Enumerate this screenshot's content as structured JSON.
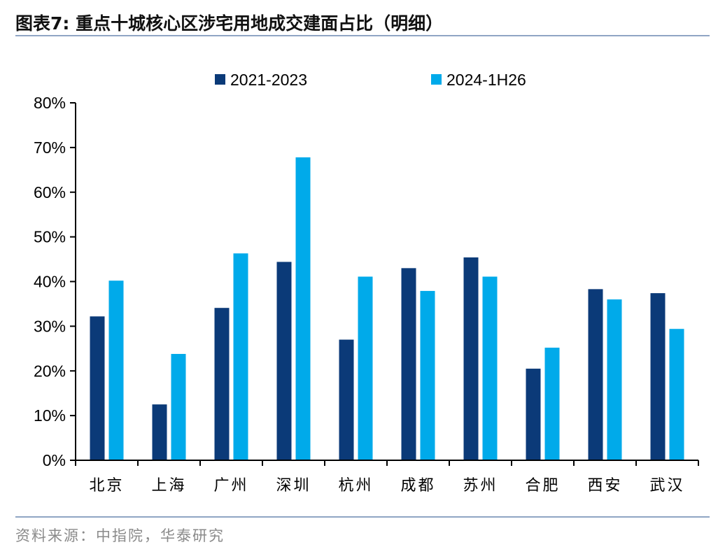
{
  "header": {
    "title": "图表7:   重点十城核心区涉宅用地成交建面占比（明细）"
  },
  "footer": {
    "source": "资料来源：中指院，华泰研究"
  },
  "colors": {
    "series1": "#0b3a78",
    "series2": "#00aaea",
    "axis": "#000000",
    "rule": "#8fa5c4"
  },
  "chart_data": {
    "type": "bar",
    "categories": [
      "北京",
      "上海",
      "广州",
      "深圳",
      "杭州",
      "成都",
      "苏州",
      "合肥",
      "西安",
      "武汉"
    ],
    "series": [
      {
        "name": "2021-2023",
        "values": [
          32.2,
          12.5,
          34.1,
          44.4,
          27.0,
          43.0,
          45.4,
          20.5,
          38.3,
          37.4
        ]
      },
      {
        "name": "2024-1H26",
        "values": [
          40.2,
          23.8,
          46.3,
          67.8,
          41.1,
          37.9,
          41.1,
          25.2,
          36.0,
          29.4
        ]
      }
    ],
    "ylim": [
      0,
      80
    ],
    "yticks": [
      "0%",
      "10%",
      "20%",
      "30%",
      "40%",
      "50%",
      "60%",
      "70%",
      "80%"
    ],
    "ytick_values": [
      0,
      10,
      20,
      30,
      40,
      50,
      60,
      70,
      80
    ],
    "legend_position": "top-center",
    "grid": false
  }
}
